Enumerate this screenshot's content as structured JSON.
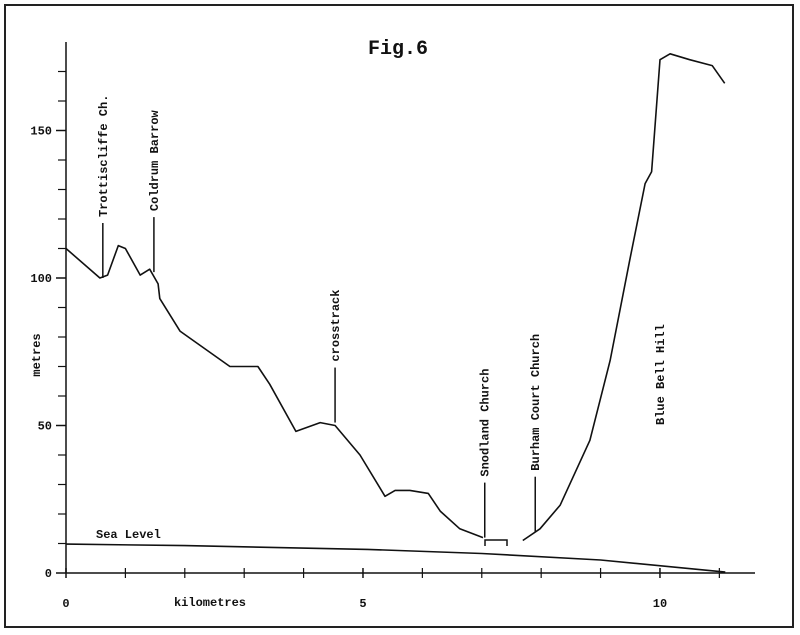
{
  "chart_data": {
    "type": "line",
    "title": "Fig.6",
    "xlabel": "kilometres",
    "ylabel": "metres",
    "xlim": [
      0,
      11.6
    ],
    "ylim": [
      0,
      180
    ],
    "xticks": [
      0,
      5,
      10
    ],
    "xminorticks": [
      1,
      2,
      3,
      4,
      6,
      7,
      8,
      9,
      11
    ],
    "yticks": [
      0,
      50,
      100,
      150
    ],
    "yminorticks": [
      10,
      20,
      30,
      40,
      60,
      70,
      80,
      90,
      110,
      120,
      130,
      140,
      160,
      170
    ],
    "series": [
      {
        "name": null,
        "color": "#111111",
        "x": [
          0,
          0.57,
          0.7,
          0.88,
          1.0,
          1.25,
          1.41,
          1.55,
          1.58,
          1.92,
          2.76,
          3.23,
          3.43,
          3.87,
          4.28,
          4.53,
          4.95,
          5.37,
          5.54,
          5.79,
          6.1,
          6.3,
          6.63,
          7.02,
          7.35,
          7.69,
          7.98,
          8.32,
          8.82,
          9.16,
          9.49,
          9.75,
          9.86,
          10.0,
          10.17,
          10.5,
          10.88,
          11.09
        ],
        "values": [
          110,
          100,
          101,
          111,
          110,
          101,
          103,
          98,
          93,
          82,
          70,
          70,
          64,
          48,
          51,
          50,
          40,
          26,
          28,
          28,
          27,
          21,
          15,
          12,
          null,
          11,
          15,
          23,
          45,
          72,
          106,
          132,
          136,
          174,
          176,
          174,
          172,
          166
        ]
      },
      {
        "name": "Sea Level",
        "color": "#111111",
        "x": [
          0,
          2,
          5.08,
          7,
          9,
          11.1
        ],
        "values": [
          9.8,
          9.3,
          8,
          6.6,
          4.4,
          0.3
        ]
      }
    ],
    "annotations": [
      {
        "text": "Trottiscliffe Ch.",
        "x": 0.62,
        "y": 100
      },
      {
        "text": "Coldrum Barrow",
        "x": 1.48,
        "y": 102
      },
      {
        "text": "crosstrack",
        "x": 4.53,
        "y": 51
      },
      {
        "text": "Snodland Church",
        "x": 7.05,
        "y": 12
      },
      {
        "text": "Burham Court Church",
        "x": 7.9,
        "y": 14
      },
      {
        "text": "Blue Bell Hill",
        "x": 10.0
      }
    ]
  }
}
